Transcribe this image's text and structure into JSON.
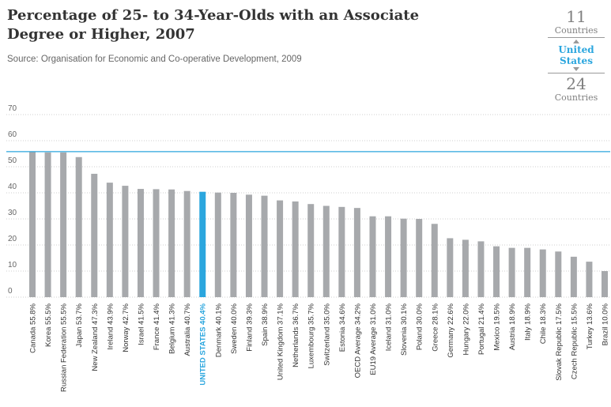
{
  "chart_data": {
    "type": "bar",
    "title": "Percentage of 25- to 34-Year-Olds with an Associate Degree or Higher, 2007",
    "source": "Source: Organisation for Economic and Co-operative Development, 2009",
    "xlabel": "",
    "ylabel": "",
    "ylim": [
      0,
      70
    ],
    "yticks": [
      0,
      10,
      20,
      30,
      40,
      50,
      60,
      70
    ],
    "grid": true,
    "highlight_category": "UNITED STATES",
    "reference_line": 55.8,
    "categories": [
      "Canada",
      "Korea",
      "Russian Federation",
      "Japan",
      "New Zealand",
      "Ireland",
      "Norway",
      "Israel",
      "France",
      "Belgium",
      "Australia",
      "UNITED STATES",
      "Denmark",
      "Sweden",
      "Finland",
      "Spain",
      "United Kingdom",
      "Netherlands",
      "Luxembourg",
      "Switzerland",
      "Estonia",
      "OECD Average",
      "EU19 Average",
      "Iceland",
      "Slovenia",
      "Poland",
      "Greece",
      "Germany",
      "Hungary",
      "Portugal",
      "Mexico",
      "Austria",
      "Italy",
      "Chile",
      "Slovak Republic",
      "Czech Republic",
      "Turkey",
      "Brazil"
    ],
    "values": [
      55.8,
      55.5,
      55.5,
      53.7,
      47.3,
      43.9,
      42.7,
      41.5,
      41.4,
      41.3,
      40.7,
      40.4,
      40.1,
      40.0,
      39.3,
      38.9,
      37.1,
      36.7,
      35.7,
      35.0,
      34.6,
      34.2,
      31.0,
      31.0,
      30.1,
      30.0,
      28.1,
      22.6,
      22.0,
      21.4,
      19.5,
      18.9,
      18.9,
      18.3,
      17.5,
      15.5,
      13.6,
      10.0
    ],
    "value_labels": [
      "55.8%",
      "55.5%",
      "55.5%",
      "53.7%",
      "47.3%",
      "43.9%",
      "42.7%",
      "41.5%",
      "41.4%",
      "41.3%",
      "40.7%",
      "40.4%",
      "40.1%",
      "40.0%",
      "39.3%",
      "38.9%",
      "37.1%",
      "36.7%",
      "35.7%",
      "35.0%",
      "34.6%",
      "34.2%",
      "31.0%",
      "31.0%",
      "30.1%",
      "30.0%",
      "28.1%",
      "22.6%",
      "22.0%",
      "21.4%",
      "19.5%",
      "18.9%",
      "18.9%",
      "18.3%",
      "17.5%",
      "15.5%",
      "13.6%",
      "10.0%"
    ]
  },
  "rank_box": {
    "above_count": "11",
    "above_label": "Countries",
    "country": "United States",
    "below_count": "24",
    "below_label": "Countries"
  },
  "colors": {
    "bar": "#a7a9ac",
    "highlight": "#2ba6de",
    "reference_line": "#2ba6de",
    "grid": "#cfcfcf"
  }
}
